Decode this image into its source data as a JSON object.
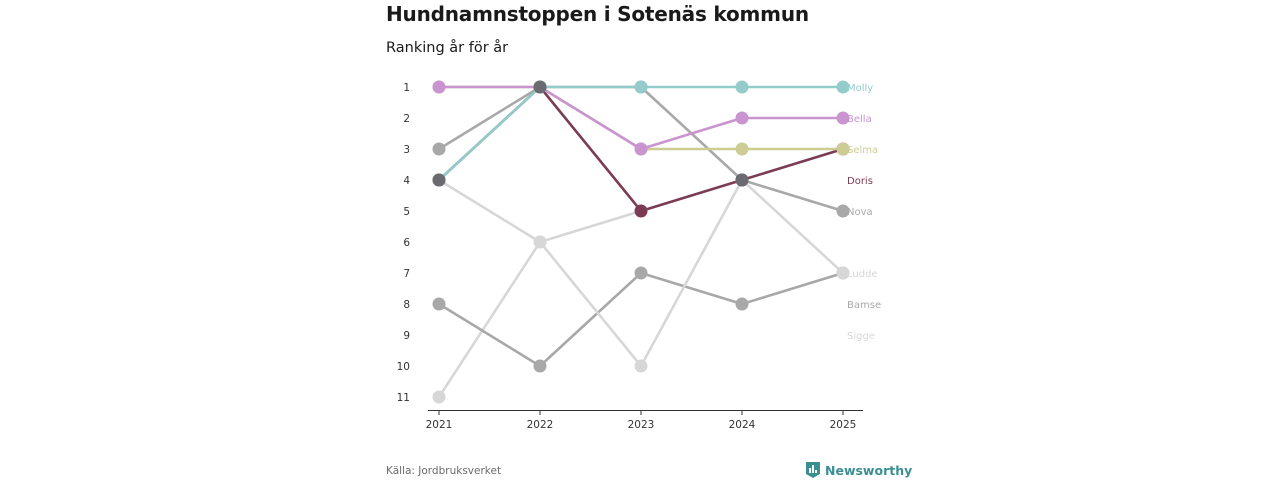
{
  "title": "Hundnamnstoppen i Sotenäs kommun",
  "subtitle": "Ranking år för år",
  "source": "Källa: Jordbruksverket",
  "brand": {
    "name": "Newsworthy",
    "color": "#3a8f92",
    "icon": "newsworthy-logo-icon"
  },
  "chart_data": {
    "type": "line",
    "subtype": "bump",
    "title": "Hundnamnstoppen i Sotenäs kommun",
    "subtitle": "Ranking år för år",
    "x": [
      "2021",
      "2022",
      "2023",
      "2024",
      "2025"
    ],
    "y_ticks": [
      1,
      2,
      3,
      4,
      5,
      6,
      7,
      8,
      9,
      10,
      11
    ],
    "ylim": [
      1,
      11
    ],
    "y_reversed": true,
    "grid": false,
    "legend": "end-labels-right",
    "series": [
      {
        "name": "Molly",
        "color": "#94cbcb",
        "values": [
          4,
          1,
          1,
          1,
          1
        ]
      },
      {
        "name": "Bella",
        "color": "#c994cf",
        "values": [
          1,
          1,
          3,
          2,
          2
        ]
      },
      {
        "name": "Selma",
        "color": "#cccc94",
        "values": [
          1,
          1,
          3,
          3,
          3
        ]
      },
      {
        "name": "Doris",
        "color": "#7b3b55",
        "values": [
          4,
          1,
          5,
          4,
          3
        ]
      },
      {
        "name": "Nova",
        "color": "#a8a8a8",
        "values": [
          3,
          1,
          1,
          4,
          5
        ]
      },
      {
        "name": "Ludde",
        "color": "#d7d7d7",
        "values": [
          4,
          6,
          10,
          4,
          7
        ]
      },
      {
        "name": "Bamse",
        "color": "#a8a8a8",
        "values": [
          8,
          10,
          7,
          8,
          7
        ]
      },
      {
        "name": "Sigge",
        "color": "#d7d7d7",
        "values": [
          11,
          6,
          5,
          null,
          null
        ]
      }
    ],
    "shared_markers": [
      {
        "x": "2021",
        "y": 4,
        "color": "#6a6a70"
      },
      {
        "x": "2022",
        "y": 1,
        "color": "#6a6a70"
      },
      {
        "x": "2024",
        "y": 4,
        "color": "#6a6a70"
      }
    ]
  }
}
